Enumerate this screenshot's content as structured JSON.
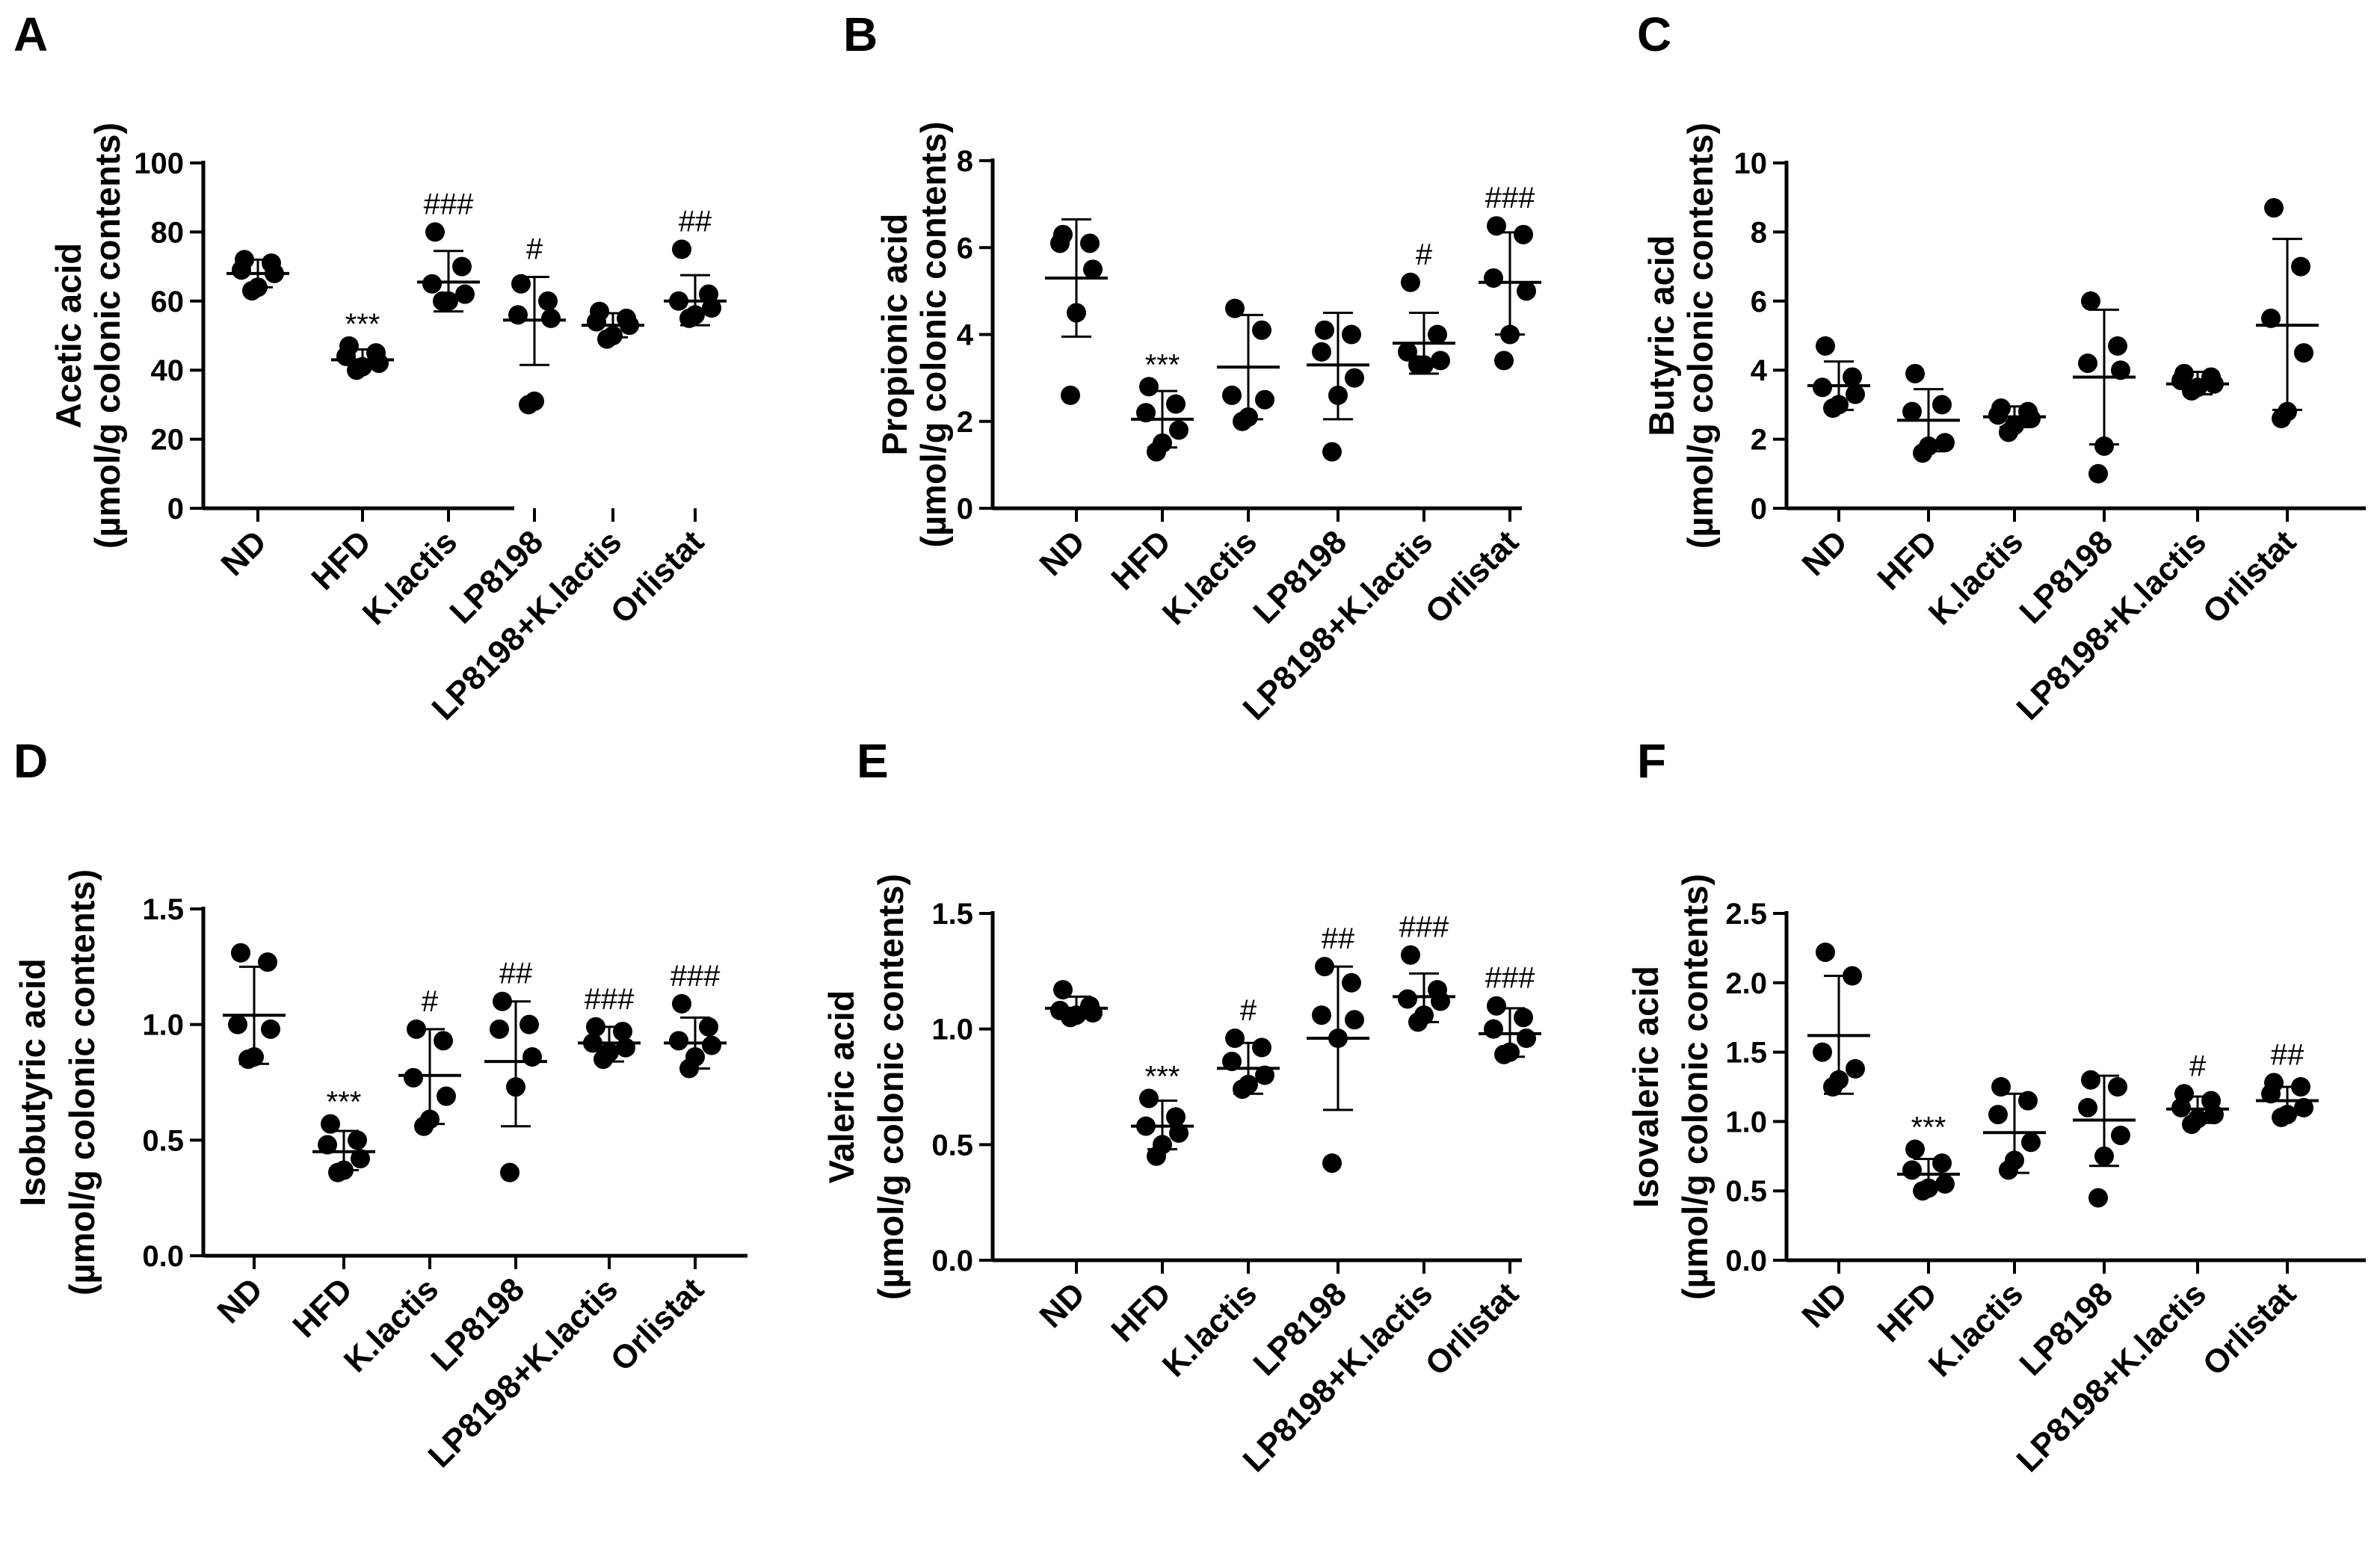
{
  "chart_data": [
    {
      "panel": "A",
      "type": "scatter",
      "ylabel_line1": "Acetic acid",
      "ylabel_line2": "(µmol/g colonic contents)",
      "ylim": [
        0,
        100
      ],
      "yticks": [
        0,
        20,
        40,
        60,
        80,
        100
      ],
      "ytick_labels": [
        "0",
        "20",
        "40",
        "60",
        "80",
        "100"
      ],
      "categories": [
        "ND",
        "HFD",
        "K.lactis",
        "LP8198",
        "LP8198+K.lactis",
        "Orlistat"
      ],
      "groups": [
        {
          "points": [
            72,
            71,
            69,
            68,
            64,
            63
          ],
          "mean": 68,
          "sd_low": 64,
          "sd_high": 72,
          "annotation": ""
        },
        {
          "points": [
            47,
            45,
            44,
            42,
            41,
            40
          ],
          "mean": 43,
          "sd_low": 40.5,
          "sd_high": 46,
          "annotation": "***"
        },
        {
          "points": [
            80,
            70,
            65,
            62,
            60,
            60
          ],
          "mean": 65.5,
          "sd_low": 57,
          "sd_high": 74.5,
          "annotation": "###"
        },
        {
          "points": [
            65,
            60,
            56,
            55,
            31,
            30
          ],
          "mean": 54.5,
          "sd_low": 41.5,
          "sd_high": 67,
          "annotation": "#"
        },
        {
          "points": [
            57,
            55,
            54,
            53,
            50,
            49
          ],
          "mean": 53,
          "sd_low": 49.5,
          "sd_high": 56.5,
          "annotation": ""
        },
        {
          "points": [
            75,
            62,
            60,
            58,
            56,
            55
          ],
          "mean": 60,
          "sd_low": 53,
          "sd_high": 67.5,
          "annotation": "##"
        }
      ]
    },
    {
      "panel": "B",
      "type": "scatter",
      "ylabel_line1": "Propionic acid",
      "ylabel_line2": "(µmol/g colonic contents)",
      "ylim": [
        0,
        8
      ],
      "yticks": [
        0,
        2,
        4,
        6,
        8
      ],
      "ytick_labels": [
        "0",
        "2",
        "4",
        "6",
        "8"
      ],
      "categories": [
        "ND",
        "HFD",
        "K.lactis",
        "LP8198",
        "LP8198+K.lactis",
        "Orlistat"
      ],
      "groups": [
        {
          "points": [
            6.3,
            6.1,
            6.1,
            5.5,
            4.5,
            2.6
          ],
          "mean": 5.3,
          "sd_low": 3.95,
          "sd_high": 6.65,
          "annotation": ""
        },
        {
          "points": [
            2.8,
            2.4,
            2.2,
            1.8,
            1.5,
            1.3
          ],
          "mean": 2.05,
          "sd_low": 1.4,
          "sd_high": 2.7,
          "annotation": "***"
        },
        {
          "points": [
            4.6,
            4.1,
            2.6,
            2.5,
            2.1,
            2.0
          ],
          "mean": 3.25,
          "sd_low": 2.05,
          "sd_high": 4.45,
          "annotation": ""
        },
        {
          "points": [
            4.1,
            4.0,
            3.6,
            3.0,
            2.6,
            1.3
          ],
          "mean": 3.3,
          "sd_low": 2.05,
          "sd_high": 4.5,
          "annotation": ""
        },
        {
          "points": [
            5.2,
            4.0,
            3.6,
            3.4,
            3.3,
            3.3
          ],
          "mean": 3.8,
          "sd_low": 3.1,
          "sd_high": 4.5,
          "annotation": "#"
        },
        {
          "points": [
            6.5,
            6.3,
            5.3,
            5.0,
            4.0,
            3.4
          ],
          "mean": 5.2,
          "sd_low": 4.0,
          "sd_high": 6.35,
          "annotation": "###"
        }
      ]
    },
    {
      "panel": "C",
      "type": "scatter",
      "ylabel_line1": "Butyric acid",
      "ylabel_line2": "(µmol/g colonic contents)",
      "ylim": [
        0,
        10
      ],
      "yticks": [
        0,
        2,
        4,
        6,
        8,
        10
      ],
      "ytick_labels": [
        "0",
        "2",
        "4",
        "6",
        "8",
        "10"
      ],
      "categories": [
        "ND",
        "HFD",
        "K.lactis",
        "LP8198",
        "LP8198+K.lactis",
        "Orlistat"
      ],
      "groups": [
        {
          "points": [
            4.7,
            3.8,
            3.5,
            3.3,
            3.0,
            2.9
          ],
          "mean": 3.55,
          "sd_low": 2.85,
          "sd_high": 4.25,
          "annotation": ""
        },
        {
          "points": [
            3.9,
            3.0,
            2.8,
            1.9,
            1.8,
            1.6
          ],
          "mean": 2.55,
          "sd_low": 1.65,
          "sd_high": 3.45,
          "annotation": ""
        },
        {
          "points": [
            2.9,
            2.8,
            2.7,
            2.6,
            2.4,
            2.2
          ],
          "mean": 2.65,
          "sd_low": 2.35,
          "sd_high": 2.95,
          "annotation": ""
        },
        {
          "points": [
            6.0,
            4.7,
            4.2,
            4.0,
            1.8,
            1.0
          ],
          "mean": 3.8,
          "sd_low": 1.85,
          "sd_high": 5.75,
          "annotation": ""
        },
        {
          "points": [
            3.9,
            3.8,
            3.7,
            3.6,
            3.5,
            3.4
          ],
          "mean": 3.6,
          "sd_low": 3.3,
          "sd_high": 3.95,
          "annotation": ""
        },
        {
          "points": [
            8.7,
            7.0,
            5.5,
            4.5,
            2.8,
            2.6
          ],
          "mean": 5.3,
          "sd_low": 2.85,
          "sd_high": 7.8,
          "annotation": ""
        }
      ]
    },
    {
      "panel": "D",
      "type": "scatter",
      "ylabel_line1": "Isobutyric acid",
      "ylabel_line2": "(µmol/g colonic contents)",
      "ylim": [
        0,
        1.5
      ],
      "yticks": [
        0,
        0.5,
        1.0,
        1.5
      ],
      "ytick_labels": [
        "0.0",
        "0.5",
        "1.0",
        "1.5"
      ],
      "categories": [
        "ND",
        "HFD",
        "K.lactis",
        "LP8198",
        "LP8198+K.lactis",
        "Orlistat"
      ],
      "groups": [
        {
          "points": [
            1.31,
            1.27,
            1.0,
            0.98,
            0.86,
            0.85
          ],
          "mean": 1.04,
          "sd_low": 0.83,
          "sd_high": 1.25,
          "annotation": ""
        },
        {
          "points": [
            0.57,
            0.5,
            0.48,
            0.42,
            0.37,
            0.36
          ],
          "mean": 0.45,
          "sd_low": 0.37,
          "sd_high": 0.54,
          "annotation": "***"
        },
        {
          "points": [
            0.98,
            0.93,
            0.77,
            0.69,
            0.59,
            0.56
          ],
          "mean": 0.78,
          "sd_low": 0.57,
          "sd_high": 0.98,
          "annotation": "#"
        },
        {
          "points": [
            1.1,
            1.0,
            0.98,
            0.86,
            0.73,
            0.36
          ],
          "mean": 0.84,
          "sd_low": 0.56,
          "sd_high": 1.1,
          "annotation": "##"
        },
        {
          "points": [
            0.99,
            0.97,
            0.92,
            0.9,
            0.88,
            0.85
          ],
          "mean": 0.92,
          "sd_low": 0.84,
          "sd_high": 0.99,
          "annotation": "###"
        },
        {
          "points": [
            1.09,
            0.99,
            0.93,
            0.91,
            0.86,
            0.81
          ],
          "mean": 0.92,
          "sd_low": 0.81,
          "sd_high": 1.03,
          "annotation": "###"
        }
      ]
    },
    {
      "panel": "E",
      "type": "scatter",
      "ylabel_line1": "Valeric acid",
      "ylabel_line2": "(µmol/g colonic contents)",
      "ylim": [
        0,
        1.5
      ],
      "yticks": [
        0,
        0.5,
        1.0,
        1.5
      ],
      "ytick_labels": [
        "0.0",
        "0.5",
        "1.0",
        "1.5"
      ],
      "categories": [
        "ND",
        "HFD",
        "K.lactis",
        "LP8198",
        "LP8198+K.lactis",
        "Orlistat"
      ],
      "groups": [
        {
          "points": [
            1.17,
            1.1,
            1.08,
            1.07,
            1.06,
            1.05
          ],
          "mean": 1.09,
          "sd_low": 1.05,
          "sd_high": 1.14,
          "annotation": ""
        },
        {
          "points": [
            0.7,
            0.62,
            0.58,
            0.55,
            0.5,
            0.45
          ],
          "mean": 0.58,
          "sd_low": 0.48,
          "sd_high": 0.69,
          "annotation": "***"
        },
        {
          "points": [
            0.96,
            0.92,
            0.86,
            0.8,
            0.76,
            0.74
          ],
          "mean": 0.83,
          "sd_low": 0.72,
          "sd_high": 0.94,
          "annotation": "#"
        },
        {
          "points": [
            1.27,
            1.2,
            1.06,
            1.04,
            0.96,
            0.42
          ],
          "mean": 0.96,
          "sd_low": 0.65,
          "sd_high": 1.27,
          "annotation": "##"
        },
        {
          "points": [
            1.32,
            1.17,
            1.13,
            1.12,
            1.06,
            1.03
          ],
          "mean": 1.14,
          "sd_low": 1.03,
          "sd_high": 1.24,
          "annotation": "###"
        },
        {
          "points": [
            1.1,
            1.05,
            1.0,
            0.96,
            0.9,
            0.89
          ],
          "mean": 0.98,
          "sd_low": 0.88,
          "sd_high": 1.09,
          "annotation": "###"
        }
      ]
    },
    {
      "panel": "F",
      "type": "scatter",
      "ylabel_line1": "Isovaleric acid",
      "ylabel_line2": "(µmol/g colonic contents)",
      "ylim": [
        0,
        2.5
      ],
      "yticks": [
        0,
        0.5,
        1.0,
        1.5,
        2.0,
        2.5
      ],
      "ytick_labels": [
        "0.0",
        "0.5",
        "1.0",
        "1.5",
        "2.0",
        "2.5"
      ],
      "categories": [
        "ND",
        "HFD",
        "K.lactis",
        "LP8198",
        "LP8198+K.lactis",
        "Orlistat"
      ],
      "groups": [
        {
          "points": [
            2.22,
            2.05,
            1.5,
            1.38,
            1.3,
            1.25
          ],
          "mean": 1.62,
          "sd_low": 1.2,
          "sd_high": 2.05,
          "annotation": ""
        },
        {
          "points": [
            0.8,
            0.7,
            0.65,
            0.55,
            0.52,
            0.5
          ],
          "mean": 0.62,
          "sd_low": 0.52,
          "sd_high": 0.73,
          "annotation": "***"
        },
        {
          "points": [
            1.25,
            1.15,
            1.05,
            0.85,
            0.72,
            0.65
          ],
          "mean": 0.92,
          "sd_low": 0.63,
          "sd_high": 1.2,
          "annotation": ""
        },
        {
          "points": [
            1.3,
            1.25,
            1.1,
            0.9,
            0.75,
            0.45
          ],
          "mean": 1.01,
          "sd_low": 0.68,
          "sd_high": 1.33,
          "annotation": ""
        },
        {
          "points": [
            1.2,
            1.15,
            1.1,
            1.05,
            1.02,
            0.98
          ],
          "mean": 1.09,
          "sd_low": 0.99,
          "sd_high": 1.18,
          "annotation": "#"
        },
        {
          "points": [
            1.28,
            1.25,
            1.2,
            1.1,
            1.05,
            1.03
          ],
          "mean": 1.15,
          "sd_low": 1.05,
          "sd_high": 1.25,
          "annotation": "##"
        }
      ]
    }
  ]
}
